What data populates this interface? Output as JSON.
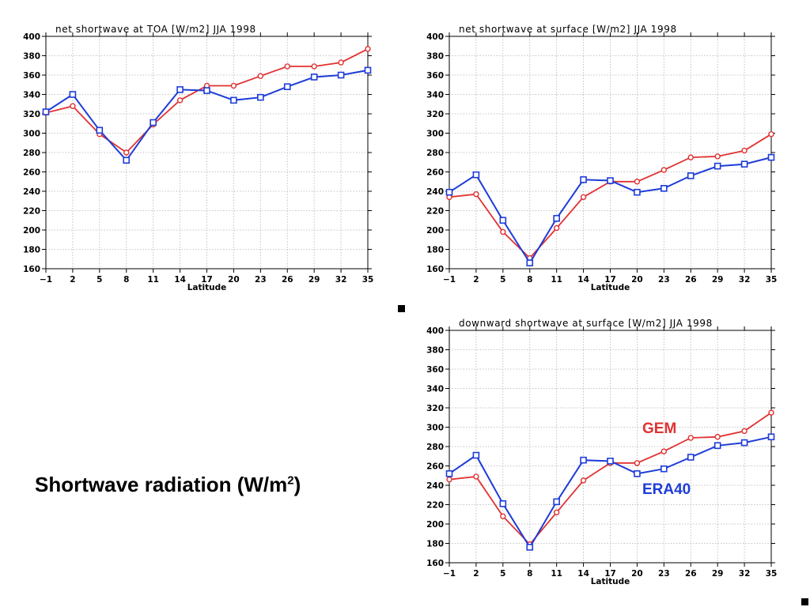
{
  "heading": {
    "main": "Shortwave radiation (W/m",
    "superscript": "2",
    "close": ")"
  },
  "legend": {
    "gem": {
      "label": "GEM",
      "color": "#e03232"
    },
    "era40": {
      "label": "ERA40",
      "color": "#1e3cd7"
    }
  },
  "chart_data": [
    {
      "type": "line",
      "title": "net shortwave at TOA [W/m2] JJA 1998",
      "xlabel": "Latitude",
      "ylabel": "",
      "x": [
        -1,
        2,
        5,
        8,
        11,
        14,
        17,
        20,
        23,
        26,
        29,
        32,
        35
      ],
      "x_ticks": [
        "−1",
        "2",
        "5",
        "8",
        "11",
        "14",
        "17",
        "20",
        "23",
        "26",
        "29",
        "32",
        "35"
      ],
      "xlim": [
        -1,
        35
      ],
      "ylim": [
        160,
        400
      ],
      "y_ticks": [
        "160",
        "180",
        "200",
        "220",
        "240",
        "260",
        "280",
        "300",
        "320",
        "340",
        "360",
        "380",
        "400"
      ],
      "grid": true,
      "series": [
        {
          "name": "GEM",
          "color": "#e03232",
          "marker": "circle",
          "values": [
            321,
            328,
            299,
            280,
            309,
            334,
            349,
            349,
            359,
            369,
            369,
            373,
            387
          ]
        },
        {
          "name": "ERA40",
          "color": "#1e3cd7",
          "marker": "square",
          "values": [
            322,
            340,
            303,
            272,
            311,
            345,
            344,
            334,
            337,
            348,
            358,
            360,
            365
          ]
        }
      ]
    },
    {
      "type": "line",
      "title": "net shortwave at surface [W/m2] JJA 1998",
      "xlabel": "Latitude",
      "ylabel": "",
      "x": [
        -1,
        2,
        5,
        8,
        11,
        14,
        17,
        20,
        23,
        26,
        29,
        32,
        35
      ],
      "x_ticks": [
        "−1",
        "2",
        "5",
        "8",
        "11",
        "14",
        "17",
        "20",
        "23",
        "26",
        "29",
        "32",
        "35"
      ],
      "xlim": [
        -1,
        35
      ],
      "ylim": [
        160,
        400
      ],
      "y_ticks": [
        "160",
        "180",
        "200",
        "220",
        "240",
        "260",
        "280",
        "300",
        "320",
        "340",
        "360",
        "380",
        "400"
      ],
      "grid": true,
      "series": [
        {
          "name": "GEM",
          "color": "#e03232",
          "marker": "circle",
          "values": [
            234,
            237,
            198,
            171,
            202,
            234,
            250,
            250,
            262,
            275,
            276,
            282,
            299
          ]
        },
        {
          "name": "ERA40",
          "color": "#1e3cd7",
          "marker": "square",
          "values": [
            239,
            257,
            210,
            166,
            212,
            252,
            251,
            239,
            243,
            256,
            266,
            268,
            275
          ]
        }
      ]
    },
    {
      "type": "line",
      "title": "downward shortwave at surface [W/m2] JJA 1998",
      "xlabel": "Latitude",
      "ylabel": "",
      "x": [
        -1,
        2,
        5,
        8,
        11,
        14,
        17,
        20,
        23,
        26,
        29,
        32,
        35
      ],
      "x_ticks": [
        "−1",
        "2",
        "5",
        "8",
        "11",
        "14",
        "17",
        "20",
        "23",
        "26",
        "29",
        "32",
        "35"
      ],
      "xlim": [
        -1,
        35
      ],
      "ylim": [
        160,
        400
      ],
      "y_ticks": [
        "160",
        "180",
        "200",
        "220",
        "240",
        "260",
        "280",
        "300",
        "320",
        "340",
        "360",
        "380",
        "400"
      ],
      "grid": true,
      "series": [
        {
          "name": "GEM",
          "color": "#e03232",
          "marker": "circle",
          "values": [
            246,
            249,
            208,
            179,
            212,
            245,
            263,
            263,
            275,
            289,
            290,
            296,
            315
          ]
        },
        {
          "name": "ERA40",
          "color": "#1e3cd7",
          "marker": "square",
          "values": [
            252,
            271,
            221,
            176,
            223,
            266,
            265,
            252,
            257,
            269,
            281,
            284,
            290
          ]
        }
      ]
    }
  ]
}
